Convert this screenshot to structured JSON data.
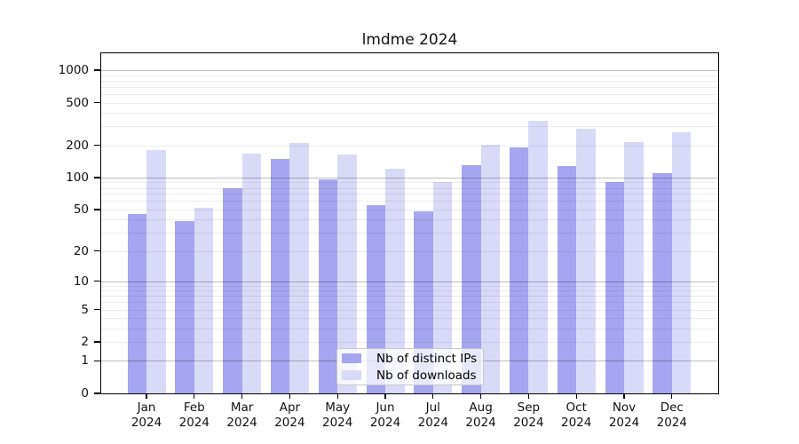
{
  "chart_data": {
    "type": "bar",
    "title": "lmdme 2024",
    "categories": [
      "Jan 2024",
      "Feb 2024",
      "Mar 2024",
      "Apr 2024",
      "May 2024",
      "Jun 2024",
      "Jul 2024",
      "Aug 2024",
      "Sep 2024",
      "Oct 2024",
      "Nov 2024",
      "Dec 2024"
    ],
    "series": [
      {
        "name": "Nb of distinct IPs",
        "key": "ips",
        "color": "#a5a5f0",
        "values": [
          45,
          39,
          80,
          148,
          96,
          55,
          48,
          130,
          190,
          128,
          90,
          110
        ]
      },
      {
        "name": "Nb of downloads",
        "key": "downloads",
        "color": "#d9d9f8",
        "values": [
          180,
          52,
          168,
          210,
          165,
          120,
          90,
          203,
          340,
          285,
          215,
          265
        ]
      }
    ],
    "xlabel": "",
    "ylabel": "",
    "yscale": "log10(value+1)",
    "ylim": [
      0,
      1400
    ],
    "yticks": [
      0,
      1,
      2,
      5,
      10,
      20,
      50,
      100,
      200,
      500,
      1000
    ],
    "major_gridlines": [
      1,
      10,
      100,
      1000
    ],
    "minor_gridlines": [
      2,
      3,
      4,
      5,
      6,
      7,
      8,
      9,
      20,
      30,
      40,
      50,
      60,
      70,
      80,
      90,
      200,
      300,
      400,
      500,
      600,
      700,
      800,
      900
    ],
    "grid": true,
    "legend_position": "bottom-center"
  },
  "legend": {
    "items": [
      {
        "label": "Nb of distinct IPs",
        "color": "#a5a5f0"
      },
      {
        "label": "Nb of downloads",
        "color": "#d9d9f8"
      }
    ]
  }
}
